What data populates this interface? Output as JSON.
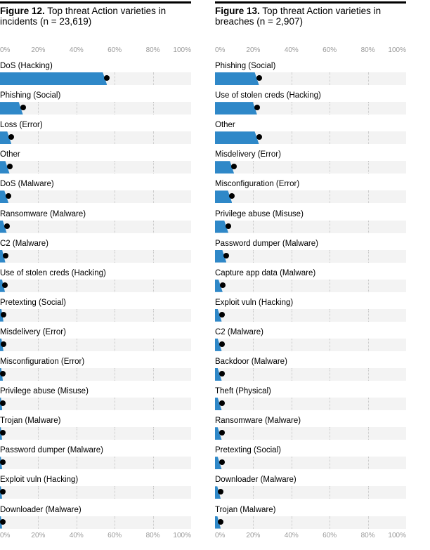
{
  "chart_data": [
    {
      "type": "bar",
      "figure_label": "Figure 12.",
      "title": "Top threat Action varieties in incidents (n = 23,619)",
      "xlim": [
        0,
        100
      ],
      "ticks": [
        "0%",
        "20%",
        "40%",
        "60%",
        "80%",
        "100%"
      ],
      "accent_color": "#2f88c8",
      "categories": [
        "DoS (Hacking)",
        "Phishing (Social)",
        "Loss (Error)",
        "Other",
        "DoS (Malware)",
        "Ransomware (Malware)",
        "C2 (Malware)",
        "Use of stolen creds (Hacking)",
        "Pretexting (Social)",
        "Misdelivery (Error)",
        "Misconfiguration (Error)",
        "Privilege abuse (Misuse)",
        "Trojan (Malware)",
        "Password dumper (Malware)",
        "Exploit vuln (Hacking)",
        "Downloader (Malware)"
      ],
      "values": [
        56,
        12,
        6,
        5,
        4.5,
        3.5,
        2.8,
        2.6,
        1.8,
        1.8,
        1.5,
        1.2,
        1.1,
        1.0,
        0.9,
        0.8
      ]
    },
    {
      "type": "bar",
      "figure_label": "Figure 13.",
      "title": "Top threat Action varieties in breaches (n = 2,907)",
      "xlim": [
        0,
        100
      ],
      "ticks": [
        "0%",
        "20%",
        "40%",
        "60%",
        "80%",
        "100%"
      ],
      "accent_color": "#2f88c8",
      "categories": [
        "Phishing (Social)",
        "Use of stolen creds (Hacking)",
        "Other",
        "Misdelivery (Error)",
        "Misconfiguration (Error)",
        "Privilege abuse (Misuse)",
        "Password dumper (Malware)",
        "Capture app data (Malware)",
        "Exploit vuln (Hacking)",
        "C2 (Malware)",
        "Backdoor (Malware)",
        "Theft (Physical)",
        "Ransomware (Malware)",
        "Pretexting (Social)",
        "Downloader (Malware)",
        "Trojan (Malware)"
      ],
      "values": [
        23,
        22,
        23,
        10,
        9,
        7,
        6,
        4,
        3.5,
        3.5,
        3.5,
        3.5,
        3.5,
        3.5,
        3,
        3
      ]
    }
  ]
}
